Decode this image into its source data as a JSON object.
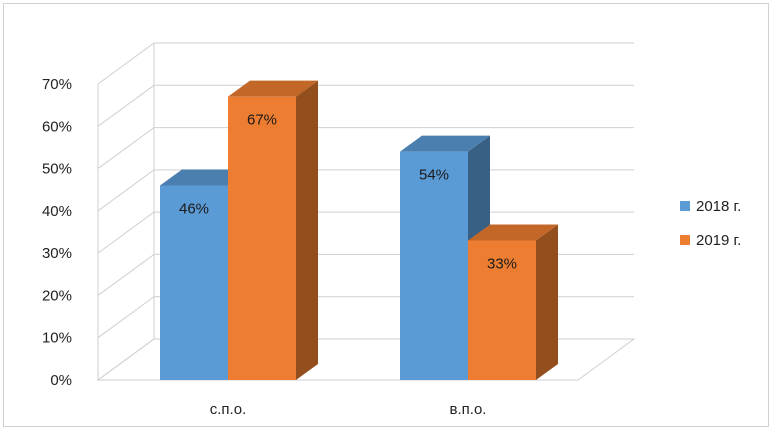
{
  "chart_data": {
    "type": "bar",
    "categories": [
      "с.п.о.",
      "в.п.о."
    ],
    "series": [
      {
        "name": "2018 г.",
        "values": [
          46,
          54
        ],
        "labels": [
          "46%",
          "54%"
        ],
        "color": "#5b9bd5"
      },
      {
        "name": "2019 г.",
        "values": [
          67,
          33
        ],
        "labels": [
          "67%",
          "33%"
        ],
        "color": "#ed7d31"
      }
    ],
    "yticks": [
      "0%",
      "10%",
      "20%",
      "30%",
      "40%",
      "50%",
      "60%",
      "70%"
    ],
    "ylim": [
      0,
      70
    ],
    "grid": true,
    "style": "3d-clustered-column",
    "legend_position": "right"
  }
}
